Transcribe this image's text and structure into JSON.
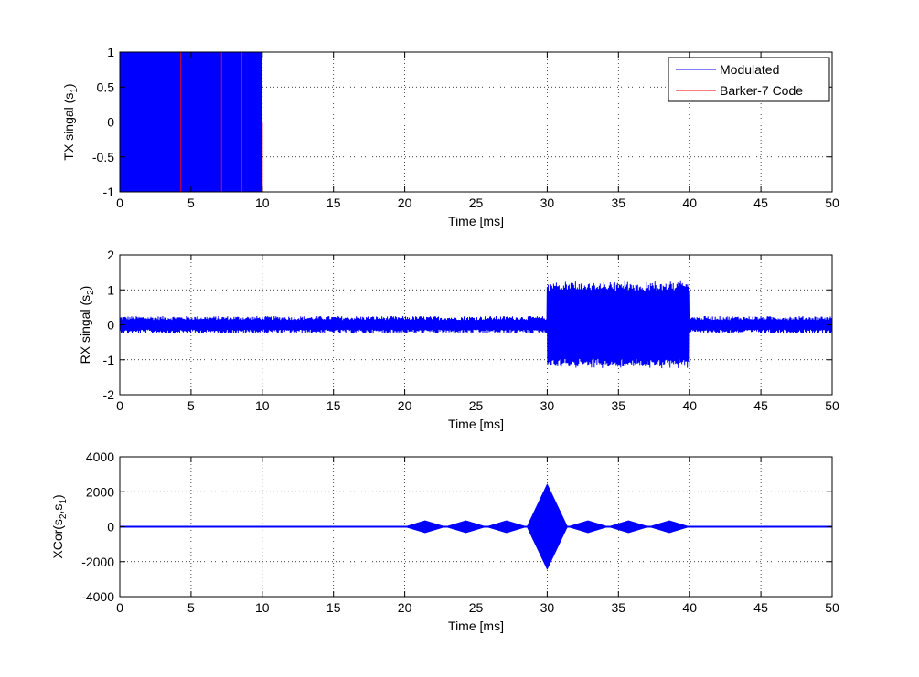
{
  "figure": {
    "background": "#ffffff"
  },
  "chart_data": [
    {
      "type": "line",
      "id": "tx",
      "xlabel": "Time [ms]",
      "ylabel_main": "TX singal (s",
      "ylabel_sub": "1",
      "ylabel_end": ")",
      "xlim": [
        0,
        50
      ],
      "ylim": [
        -1,
        1
      ],
      "xticks": [
        0,
        5,
        10,
        15,
        20,
        25,
        30,
        35,
        40,
        45,
        50
      ],
      "yticks": [
        -1,
        -0.5,
        0,
        0.5,
        1
      ],
      "ytick_labels": [
        "-1",
        "-0.5",
        "0",
        "0.5",
        "1"
      ],
      "grid": true,
      "legend": {
        "placement": "top-right",
        "entries": [
          {
            "label": "Modulated",
            "color": "#0000ff"
          },
          {
            "label": "Barker-7 Code",
            "color": "#ff0000"
          }
        ]
      },
      "series": [
        {
          "name": "Modulated",
          "color": "#0000ff",
          "kind": "band",
          "segments": [
            {
              "x0": 0,
              "x1": 10,
              "lo": -1,
              "hi": 1
            }
          ],
          "baseline": 0
        },
        {
          "name": "Barker-7 Code",
          "color": "#ff0000",
          "kind": "step",
          "x": [
            0,
            4.286,
            4.286,
            7.143,
            7.143,
            8.571,
            8.571,
            10,
            10,
            50
          ],
          "y": [
            1,
            1,
            -1,
            -1,
            1,
            1,
            -1,
            -1,
            0,
            0
          ]
        }
      ]
    },
    {
      "type": "line",
      "id": "rx",
      "xlabel": "Time [ms]",
      "ylabel_main": "RX singal (s",
      "ylabel_sub": "2",
      "ylabel_end": ")",
      "xlim": [
        0,
        50
      ],
      "ylim": [
        -2,
        2
      ],
      "xticks": [
        0,
        5,
        10,
        15,
        20,
        25,
        30,
        35,
        40,
        45,
        50
      ],
      "yticks": [
        -2,
        -1,
        0,
        1,
        2
      ],
      "ytick_labels": [
        "-2",
        "-1",
        "0",
        "1",
        "2"
      ],
      "grid": true,
      "series": [
        {
          "name": "",
          "color": "#0000ff",
          "kind": "noise",
          "noise_amplitude": 0.25,
          "signal_segments": [
            {
              "x0": 30,
              "x1": 40,
              "amplitude": 1.15
            }
          ]
        }
      ]
    },
    {
      "type": "line",
      "id": "xcorr",
      "xlabel": "Time [ms]",
      "ylabel_main": "XCor(s",
      "ylabel_sub": "2",
      "ylabel_mid": ",s",
      "ylabel_sub2": "1",
      "ylabel_end": ")",
      "xlim": [
        0,
        50
      ],
      "ylim": [
        -4000,
        4000
      ],
      "xticks": [
        0,
        5,
        10,
        15,
        20,
        25,
        30,
        35,
        40,
        45,
        50
      ],
      "yticks": [
        -4000,
        -2000,
        0,
        2000,
        4000
      ],
      "ytick_labels": [
        "-4000",
        "-2000",
        "0",
        "2000",
        "4000"
      ],
      "grid": true,
      "series": [
        {
          "name": "",
          "color": "#0000ff",
          "kind": "envelope",
          "lobes": [
            {
              "center": 21.43,
              "width": 2.857,
              "peak": 350
            },
            {
              "center": 24.29,
              "width": 2.857,
              "peak": 350
            },
            {
              "center": 27.14,
              "width": 2.857,
              "peak": 350
            },
            {
              "center": 30.0,
              "width": 2.857,
              "peak": 2450
            },
            {
              "center": 32.86,
              "width": 2.857,
              "peak": 350
            },
            {
              "center": 35.71,
              "width": 2.857,
              "peak": 350
            },
            {
              "center": 38.57,
              "width": 2.857,
              "peak": 350
            }
          ]
        }
      ]
    }
  ]
}
